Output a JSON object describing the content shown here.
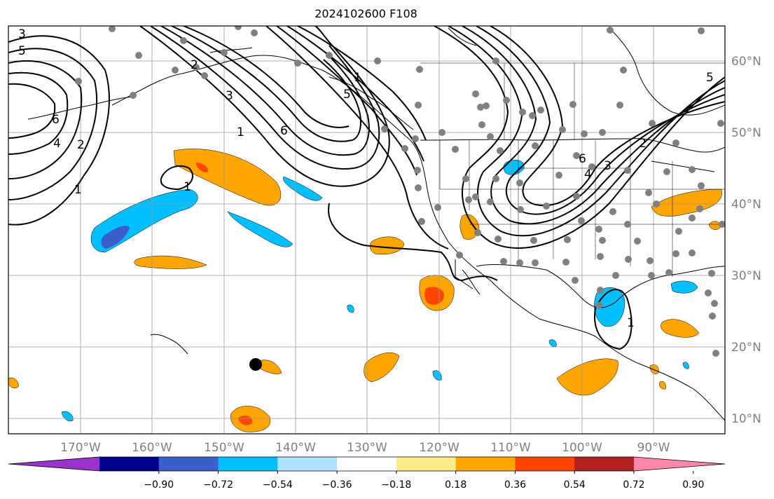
{
  "title": "2024102600 F108",
  "lon_labels": [
    "170°W",
    "160°W",
    "150°W",
    "140°W",
    "130°W",
    "120°W",
    "110°W",
    "100°W",
    "90°W"
  ],
  "lat_labels": [
    "60°N",
    "50°N",
    "40°N",
    "30°N",
    "20°N",
    "10°N"
  ],
  "colorbar": {
    "colors": [
      "#9933cc",
      "#00008b",
      "#3a5fcd",
      "#00bfff",
      "#b0e2ff",
      "#ffffff",
      "#fdec8a",
      "#ffa500",
      "#ff4500",
      "#b22222",
      "#ff88aa"
    ],
    "ticks": [
      "−0.90",
      "−0.72",
      "−0.54",
      "−0.36",
      "−0.18",
      "0.18",
      "0.36",
      "0.54",
      "0.72",
      "0.90"
    ]
  },
  "contour_labels": [
    "3",
    "5",
    "6",
    "4",
    "2",
    "1",
    "2",
    "3",
    "1",
    "6",
    "1",
    "1",
    "5",
    "6",
    "4",
    "3",
    "2",
    "1",
    "5"
  ]
}
